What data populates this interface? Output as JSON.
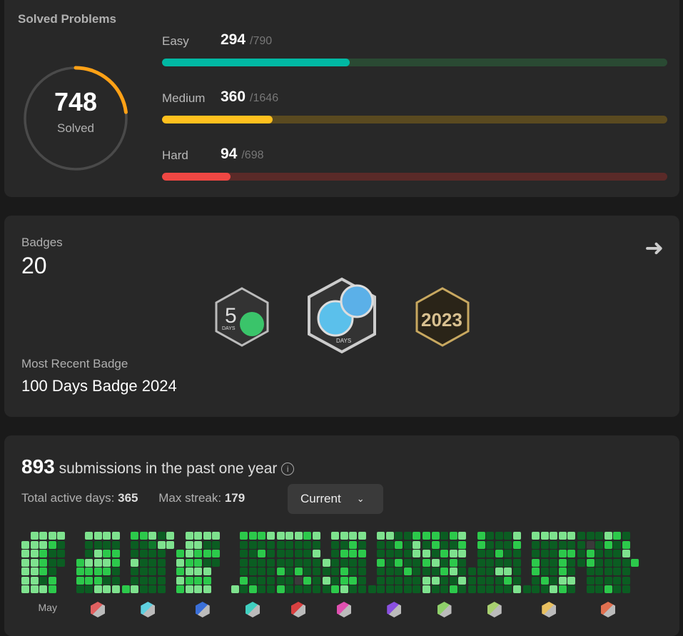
{
  "solved": {
    "title": "Solved Problems",
    "total": "748",
    "total_label": "Solved",
    "ratio": 0.23,
    "rows": [
      {
        "label": "Easy",
        "solved": "294",
        "total": "/790",
        "fraction": 0.372,
        "color": "#00b8a3",
        "track": "#2a4a33"
      },
      {
        "label": "Medium",
        "solved": "360",
        "total": "/1646",
        "fraction": 0.219,
        "color": "#ffc01e",
        "track": "#5a4a20"
      },
      {
        "label": "Hard",
        "solved": "94",
        "total": "/698",
        "fraction": 0.135,
        "color": "#ef4743",
        "track": "#5a2a28"
      }
    ]
  },
  "badges": {
    "title": "Badges",
    "count": "20",
    "recent_label": "Most Recent Badge",
    "recent": "100 Days Badge 2024",
    "items": [
      {
        "name": "50 Days Badge",
        "text": "DAYS"
      },
      {
        "name": "100 Days Badge",
        "text": "DAYS"
      },
      {
        "name": "2023 Annual Badge",
        "text": "2023"
      }
    ]
  },
  "activity": {
    "count": "893",
    "count_label": "submissions in the past one year",
    "active_label": "Total active days:",
    "active": "365",
    "streak_label": "Max streak:",
    "streak": "179",
    "dropdown": "Current",
    "colors": {
      "0": "#3a3a3a",
      "1": "#0b5d22",
      "2": "#107a2c",
      "3": "#2cc94b",
      "4": "#7ee28e"
    },
    "months": [
      {
        "label": "May",
        "cols": [
          ".444444",
          "4444444",
          "4433314",
          "4311133",
          "4111",
          "."
        ]
      },
      {
        "badge": "#e06060",
        "cols": [
          "...3331",
          "4114331",
          "4144334",
          "4134314",
          "4133114"
        ]
      },
      {
        "badge": "#5fd0e0",
        "cols": [
          "......3",
          "3114114",
          "3111111",
          "4211111",
          "1411111",
          "44....."
        ]
      },
      {
        "badge": "#3a6fd8",
        "cols": [
          "..34343",
          "4443434",
          "4433434",
          "4131434",
          "4131",
          "."
        ]
      },
      {
        "badge": "#40d0c0",
        "cols": [
          "......4",
          "3111131",
          "3111113",
          "3131111",
          "4111111"
        ]
      },
      {
        "badge": "#d84040",
        "cols": [
          "4111313",
          "4111111",
          "4111301",
          "3111131",
          "4141111"
        ]
      },
      {
        "badge": "#e050b0",
        "cols": [
          "...4141",
          "4111113",
          "4131334",
          "4331131",
          "4131111"
        ]
      },
      {
        "badge": "#8a50e0",
        "cols": [
          "......1",
          "4113111",
          "4111111",
          "1313111",
          "1111311",
          "3441111"
        ]
      },
      {
        "badge": "#8fd06a",
        "cols": [
          "3143144",
          "3314141",
          "1131311",
          "3143413",
          "4341141"
        ]
      },
      {
        "badge": "#a8d070",
        "cols": [
          "....111",
          "3311111",
          "1111111",
          "1131411",
          "1111431",
          "4311114"
        ]
      },
      {
        "badge": "#e8c060",
        "cols": [
          "......1",
          "4113311",
          "4111131",
          "4111114",
          "4133343",
          "4131141"
        ]
      },
      {
        "badge": "#e07050",
        "cols": [
          "1111",
          "1033111",
          "1111111",
          "4311113",
          "3111111",
          "1341111",
          "...3..."
        ]
      }
    ]
  }
}
